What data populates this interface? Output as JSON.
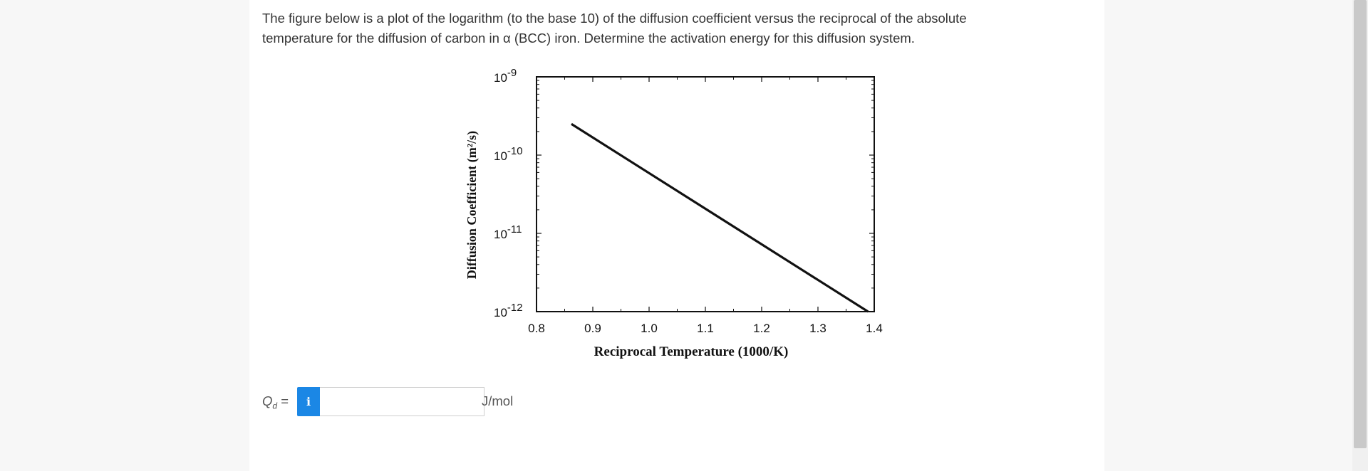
{
  "question": {
    "line1": "The figure below is a plot of the logarithm (to the base 10) of the diffusion coefficient versus the reciprocal of the absolute",
    "line2": "temperature for the diffusion of carbon in α (BCC) iron.  Determine the activation energy for this diffusion system."
  },
  "answer": {
    "label_symbol": "Q",
    "label_subscript": "d",
    "label_equals": " =",
    "info_icon": "info-icon",
    "input_value": "",
    "unit": "J/mol"
  },
  "colors": {
    "info_button": "#1b87e5",
    "text": "#333333"
  },
  "chart_data": {
    "type": "line",
    "title": "",
    "xlabel": "Reciprocal Temperature (1000/K)",
    "ylabel": "Diffusion Coefficient (m²/s)",
    "xlim": [
      0.8,
      1.4
    ],
    "ylim_log10": [
      -12,
      -9
    ],
    "y_scale": "log",
    "x_ticks": [
      "0.8",
      "0.9",
      "1.0",
      "1.1",
      "1.2",
      "1.3",
      "1.4"
    ],
    "y_ticks": [
      {
        "base": "10",
        "exp": "-9",
        "log10": -9
      },
      {
        "base": "10",
        "exp": "-10",
        "log10": -10
      },
      {
        "base": "10",
        "exp": "-11",
        "log10": -11
      },
      {
        "base": "10",
        "exp": "-12",
        "log10": -12
      }
    ],
    "grid": false,
    "series": [
      {
        "x": [
          0.862,
          1.389
        ],
        "y": [
          2.5e-10,
          1e-12
        ]
      }
    ]
  }
}
